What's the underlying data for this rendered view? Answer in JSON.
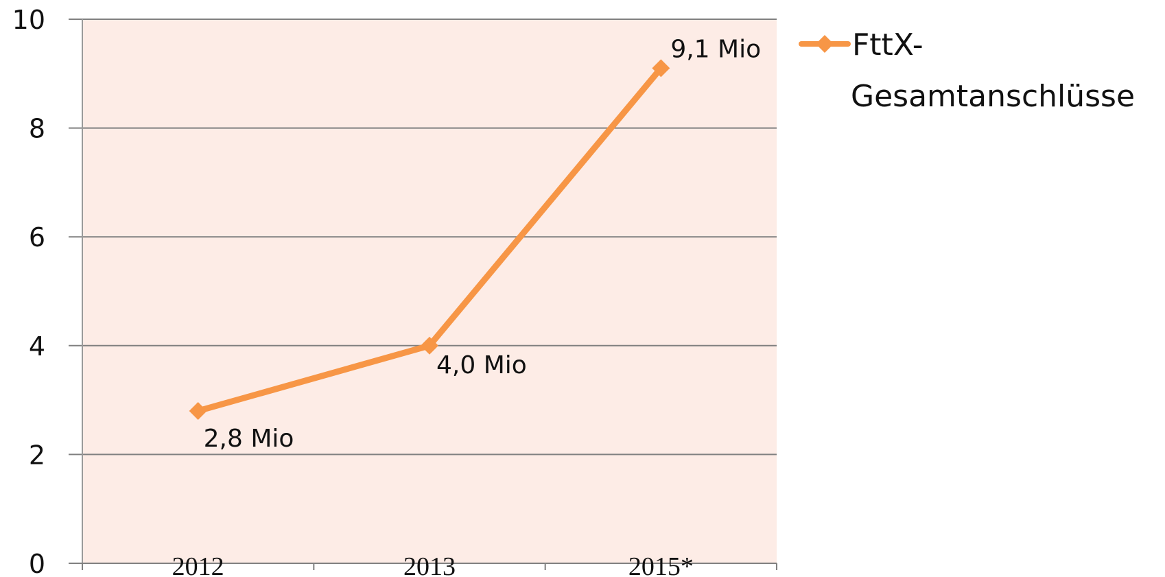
{
  "chart_data": {
    "type": "line",
    "categories": [
      "2012",
      "2013",
      "2015*"
    ],
    "series": [
      {
        "name": "FttX-Gesamtanschlüsse",
        "values": [
          2.8,
          4.0,
          9.1
        ],
        "data_labels": [
          "2,8 Mio",
          "4,0 Mio",
          "9,1 Mio"
        ],
        "color": "#f79646",
        "marker": "diamond"
      }
    ],
    "ylim": [
      0,
      10
    ],
    "yticks": [
      "0",
      "2",
      "4",
      "6",
      "8",
      "10"
    ],
    "grid": true,
    "legend_position": "right",
    "legend_lines": [
      "FttX-",
      "Gesamtanschlüsse"
    ],
    "plot_background": "#fdece6",
    "gridline_color": "#808080"
  }
}
